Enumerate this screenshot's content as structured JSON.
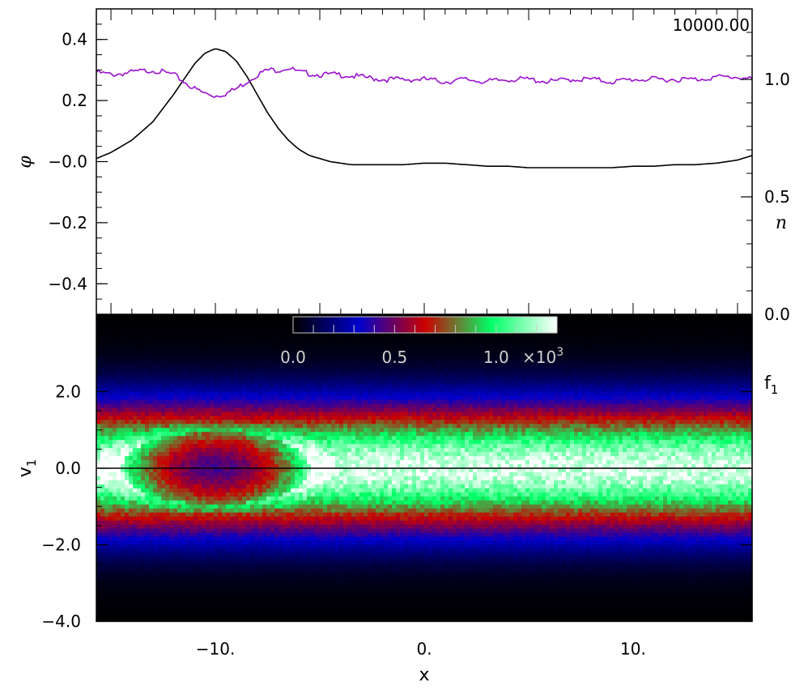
{
  "chart_data": [
    {
      "type": "line",
      "panel": "top",
      "timestamp": "10000.00",
      "xlim": [
        -15.7,
        15.7
      ],
      "left_axis": {
        "label": "φ",
        "ylim": [
          -0.5,
          0.5
        ],
        "ticks": [
          "0.4",
          "0.2",
          "−0.0",
          "−0.2",
          "−0.4"
        ],
        "tick_values": [
          0.4,
          0.2,
          0.0,
          -0.2,
          -0.4
        ]
      },
      "right_axis": {
        "label": "n",
        "ylim": [
          0.0,
          1.3
        ],
        "ticks": [
          "1.0",
          "0.5",
          "0.0"
        ],
        "tick_values": [
          1.0,
          0.5,
          0.0
        ]
      },
      "series": [
        {
          "axis": "left",
          "color": "#000000",
          "x": [
            -15.7,
            -15,
            -14,
            -13,
            -12,
            -11.5,
            -11,
            -10.5,
            -10,
            -9.5,
            -9,
            -8.5,
            -8,
            -7.5,
            -7,
            -6.5,
            -6,
            -5.5,
            -5,
            -4.5,
            -4,
            -3.5,
            -3,
            -2,
            -1,
            0,
            1,
            2,
            3,
            4,
            5,
            6,
            7,
            8,
            9,
            10,
            11,
            12,
            13,
            14,
            15,
            15.7
          ],
          "y": [
            0.01,
            0.03,
            0.07,
            0.13,
            0.22,
            0.27,
            0.32,
            0.355,
            0.37,
            0.36,
            0.33,
            0.28,
            0.22,
            0.16,
            0.11,
            0.07,
            0.04,
            0.02,
            0.01,
            0.0,
            -0.005,
            -0.01,
            -0.01,
            -0.01,
            -0.01,
            -0.005,
            -0.005,
            -0.01,
            -0.015,
            -0.015,
            -0.02,
            -0.02,
            -0.02,
            -0.02,
            -0.02,
            -0.015,
            -0.015,
            -0.01,
            -0.01,
            -0.005,
            0.005,
            0.02
          ]
        },
        {
          "axis": "right",
          "color": "#9b10d0",
          "x": [
            -15.7,
            -15,
            -14,
            -13,
            -12,
            -11.5,
            -11,
            -10.5,
            -10,
            -9.5,
            -9,
            -8.5,
            -8,
            -7.5,
            -7,
            -6.5,
            -6,
            -5,
            -4,
            -3,
            -2,
            -1,
            0,
            1,
            2,
            3,
            4,
            5,
            6,
            7,
            8,
            9,
            10,
            11,
            12,
            13,
            14,
            15,
            15.7
          ],
          "y": [
            1.03,
            1.02,
            1.03,
            1.04,
            1.02,
            0.99,
            0.96,
            0.94,
            0.93,
            0.94,
            0.96,
            0.99,
            1.02,
            1.04,
            1.04,
            1.05,
            1.03,
            1.02,
            1.02,
            1.01,
            1.0,
            1.0,
            1.0,
            0.99,
            1.0,
            0.99,
            1.0,
            1.0,
            0.99,
            1.0,
            1.0,
            0.99,
            1.0,
            1.0,
            1.0,
            1.0,
            1.01,
            1.01,
            1.0
          ]
        }
      ]
    },
    {
      "type": "heatmap",
      "panel": "bottom",
      "colorbar_label": "f",
      "colorbar_subscript": "1",
      "xlabel": "x",
      "ylabel": "v",
      "ylabel_subscript": "1",
      "xlim": [
        -15.7,
        15.7
      ],
      "ylim": [
        -4.0,
        4.0
      ],
      "xticks": [
        "−10.",
        "0.",
        "10."
      ],
      "xtick_values": [
        -10,
        0,
        10
      ],
      "yticks": [
        "2.0",
        "0.0",
        "−2.0",
        "−4.0"
      ],
      "ytick_values": [
        2.0,
        0.0,
        -2.0,
        -4.0
      ],
      "colorbar": {
        "range": [
          0.0,
          1.3
        ],
        "ticks": [
          "0.0",
          "0.5",
          "1.0"
        ],
        "tick_values": [
          0.0,
          0.5,
          1.0
        ],
        "multiplier": "×10",
        "multiplier_exp": "3",
        "colors": [
          "#000000",
          "#0000cc",
          "#cc0000",
          "#00ff66",
          "#ffffff"
        ]
      },
      "separatrix_hole": {
        "x_center": -10.0,
        "v_center": 0.0,
        "x_halfwidth": 4.5,
        "v_halfwidth": 0.95
      }
    }
  ]
}
